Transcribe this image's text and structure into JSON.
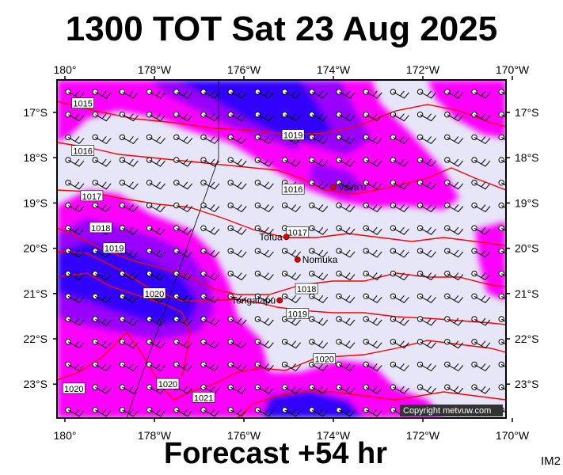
{
  "title": "1300 TOT Sat 23 Aug 2025",
  "footer": "Forecast +54 hr",
  "corner_label": "IM2",
  "copyright": "Copyright metvuw.com",
  "lon_labels": [
    "180°",
    "178°W",
    "176°W",
    "174°W",
    "172°W",
    "170°W"
  ],
  "lat_labels": [
    "17°S",
    "18°S",
    "19°S",
    "20°S",
    "21°S",
    "22°S",
    "23°S"
  ],
  "places": [
    {
      "name": "Vava'u",
      "lon": -174.0,
      "lat": -18.65
    },
    {
      "name": "Tofua",
      "lon": -175.05,
      "lat": -19.75
    },
    {
      "name": "Nomuka",
      "lon": -174.8,
      "lat": -20.25
    },
    {
      "name": "Tongatapu",
      "lon": -175.2,
      "lat": -21.15
    }
  ],
  "isobars": [
    {
      "label": "1015",
      "lon": -179.6,
      "lat": -16.8
    },
    {
      "label": "1016",
      "lon": -179.6,
      "lat": -17.85
    },
    {
      "label": "1017",
      "lon": -179.4,
      "lat": -18.85
    },
    {
      "label": "1018",
      "lon": -179.2,
      "lat": -19.55
    },
    {
      "label": "1019",
      "lon": -178.9,
      "lat": -20.0
    },
    {
      "label": "1020",
      "lon": -178.0,
      "lat": -21.0
    },
    {
      "label": "1019",
      "lon": -174.9,
      "lat": -17.5
    },
    {
      "label": "1016",
      "lon": -174.9,
      "lat": -18.7
    },
    {
      "label": "1017",
      "lon": -174.8,
      "lat": -19.65
    },
    {
      "label": "1018",
      "lon": -174.6,
      "lat": -20.9
    },
    {
      "label": "1019",
      "lon": -174.8,
      "lat": -21.45
    },
    {
      "label": "1020",
      "lon": -174.2,
      "lat": -22.45
    },
    {
      "label": "1020",
      "lon": -177.7,
      "lat": -23.0
    },
    {
      "label": "1020",
      "lon": -179.8,
      "lat": -23.1
    },
    {
      "label": "1021",
      "lon": -176.9,
      "lat": -23.3
    }
  ],
  "colors": {
    "background": "#e6e6f8",
    "magenta": "#ff00ff",
    "purple": "#9900ff",
    "blue": "#3300ff",
    "isobar": "#ff0000"
  }
}
